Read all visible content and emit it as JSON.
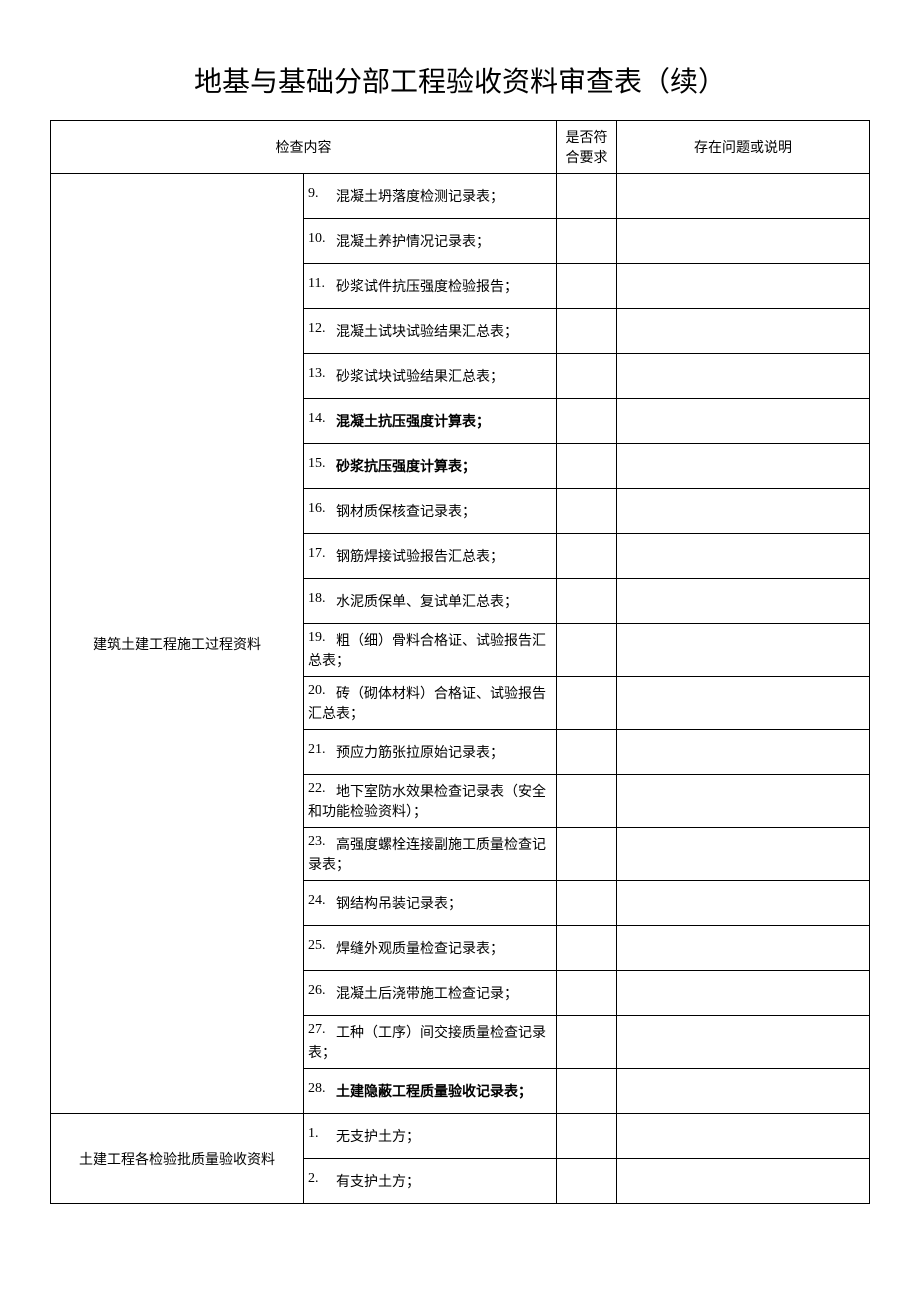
{
  "title": "地基与基础分部工程验收资料审查表（续）",
  "headers": {
    "content": "检查内容",
    "conform": "是否符合要求",
    "notes": "存在问题或说明"
  },
  "section1": {
    "label": "建筑土建工程施工过程资料",
    "items": [
      {
        "num": "9.",
        "text": "混凝土坍落度检测记录表；",
        "bold": false
      },
      {
        "num": "10.",
        "text": "混凝土养护情况记录表；",
        "bold": false
      },
      {
        "num": "11.",
        "text": "砂浆试件抗压强度检验报告；",
        "bold": false
      },
      {
        "num": "12.",
        "text": "混凝土试块试验结果汇总表；",
        "bold": false
      },
      {
        "num": "13.",
        "text": "砂浆试块试验结果汇总表；",
        "bold": false
      },
      {
        "num": "14.",
        "text": "混凝土抗压强度计算表；",
        "bold": true
      },
      {
        "num": "15.",
        "text": "砂浆抗压强度计算表；",
        "bold": true
      },
      {
        "num": "16.",
        "text": "钢材质保核查记录表；",
        "bold": false
      },
      {
        "num": "17.",
        "text": "钢筋焊接试验报告汇总表；",
        "bold": false
      },
      {
        "num": "18.",
        "text": "水泥质保单、复试单汇总表；",
        "bold": false
      },
      {
        "num": "19.",
        "text": "粗（细）骨料合格证、试验报告汇总表；",
        "bold": false
      },
      {
        "num": "20.",
        "text": "砖（砌体材料）合格证、试验报告汇总表；",
        "bold": false
      },
      {
        "num": "21.",
        "text": "预应力筋张拉原始记录表；",
        "bold": false
      },
      {
        "num": "22.",
        "text": "地下室防水效果检查记录表（安全和功能检验资料）；",
        "bold": false
      },
      {
        "num": "23.",
        "text": "高强度螺栓连接副施工质量检查记录表；",
        "bold": false
      },
      {
        "num": "24.",
        "text": "钢结构吊装记录表；",
        "bold": false
      },
      {
        "num": "25.",
        "text": "焊缝外观质量检查记录表；",
        "bold": false
      },
      {
        "num": "26.",
        "text": "混凝土后浇带施工检查记录；",
        "bold": false
      },
      {
        "num": "27.",
        "text": "工种（工序）间交接质量检查记录表；",
        "bold": false
      },
      {
        "num": "28.",
        "text": "土建隐蔽工程质量验收记录表；",
        "bold": true
      }
    ]
  },
  "section2": {
    "label": "土建工程各检验批质量验收资料",
    "items": [
      {
        "num": "1.",
        "text": "无支护土方；",
        "bold": false
      },
      {
        "num": "2.",
        "text": "有支护土方；",
        "bold": false
      }
    ]
  }
}
